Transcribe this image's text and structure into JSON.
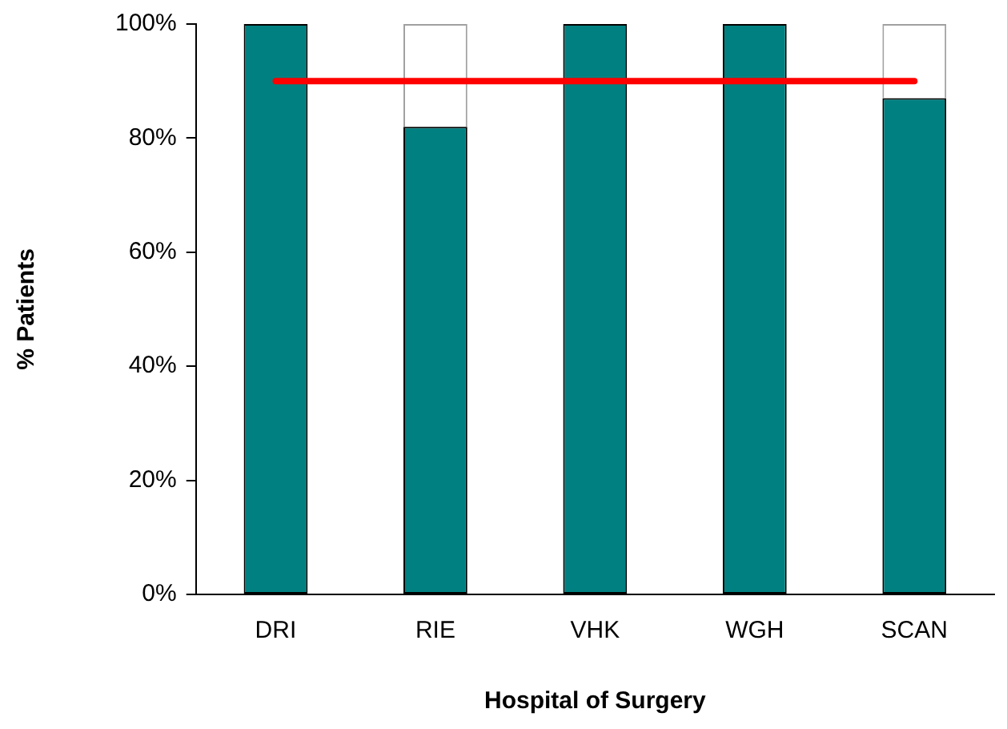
{
  "chart_data": {
    "type": "bar",
    "stacked": true,
    "xlabel": "Hospital of Surgery",
    "ylabel": "% Patients",
    "categories": [
      "DRI",
      "RIE",
      "VHK",
      "WGH",
      "SCAN"
    ],
    "series": [
      {
        "color": "#008080",
        "values": [
          100,
          82,
          100,
          100,
          87
        ]
      },
      {
        "color": "#ffffff",
        "values": [
          0,
          18,
          0,
          0,
          13
        ]
      },
      {
        "type": "line",
        "color": "#ff0000",
        "values": [
          90,
          90,
          90,
          90,
          90
        ]
      }
    ],
    "ylim": [
      0,
      100
    ],
    "yticks": [
      {
        "value": 0,
        "label": "0%"
      },
      {
        "value": 20,
        "label": "20%"
      },
      {
        "value": 40,
        "label": "40%"
      },
      {
        "value": 60,
        "label": "60%"
      },
      {
        "value": 80,
        "label": "80%"
      },
      {
        "value": 100,
        "label": "100%"
      }
    ],
    "grid": false,
    "legend": false,
    "marker": "none"
  }
}
